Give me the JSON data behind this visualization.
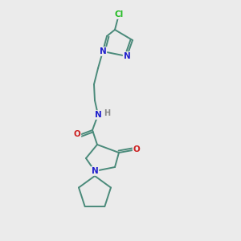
{
  "background_color": "#ebebeb",
  "bond_color": "#4a8a7a",
  "atom_colors": {
    "N": "#2020cc",
    "O": "#cc2020",
    "Cl": "#22bb22",
    "H": "#888888",
    "C": "#4a8a7a"
  }
}
